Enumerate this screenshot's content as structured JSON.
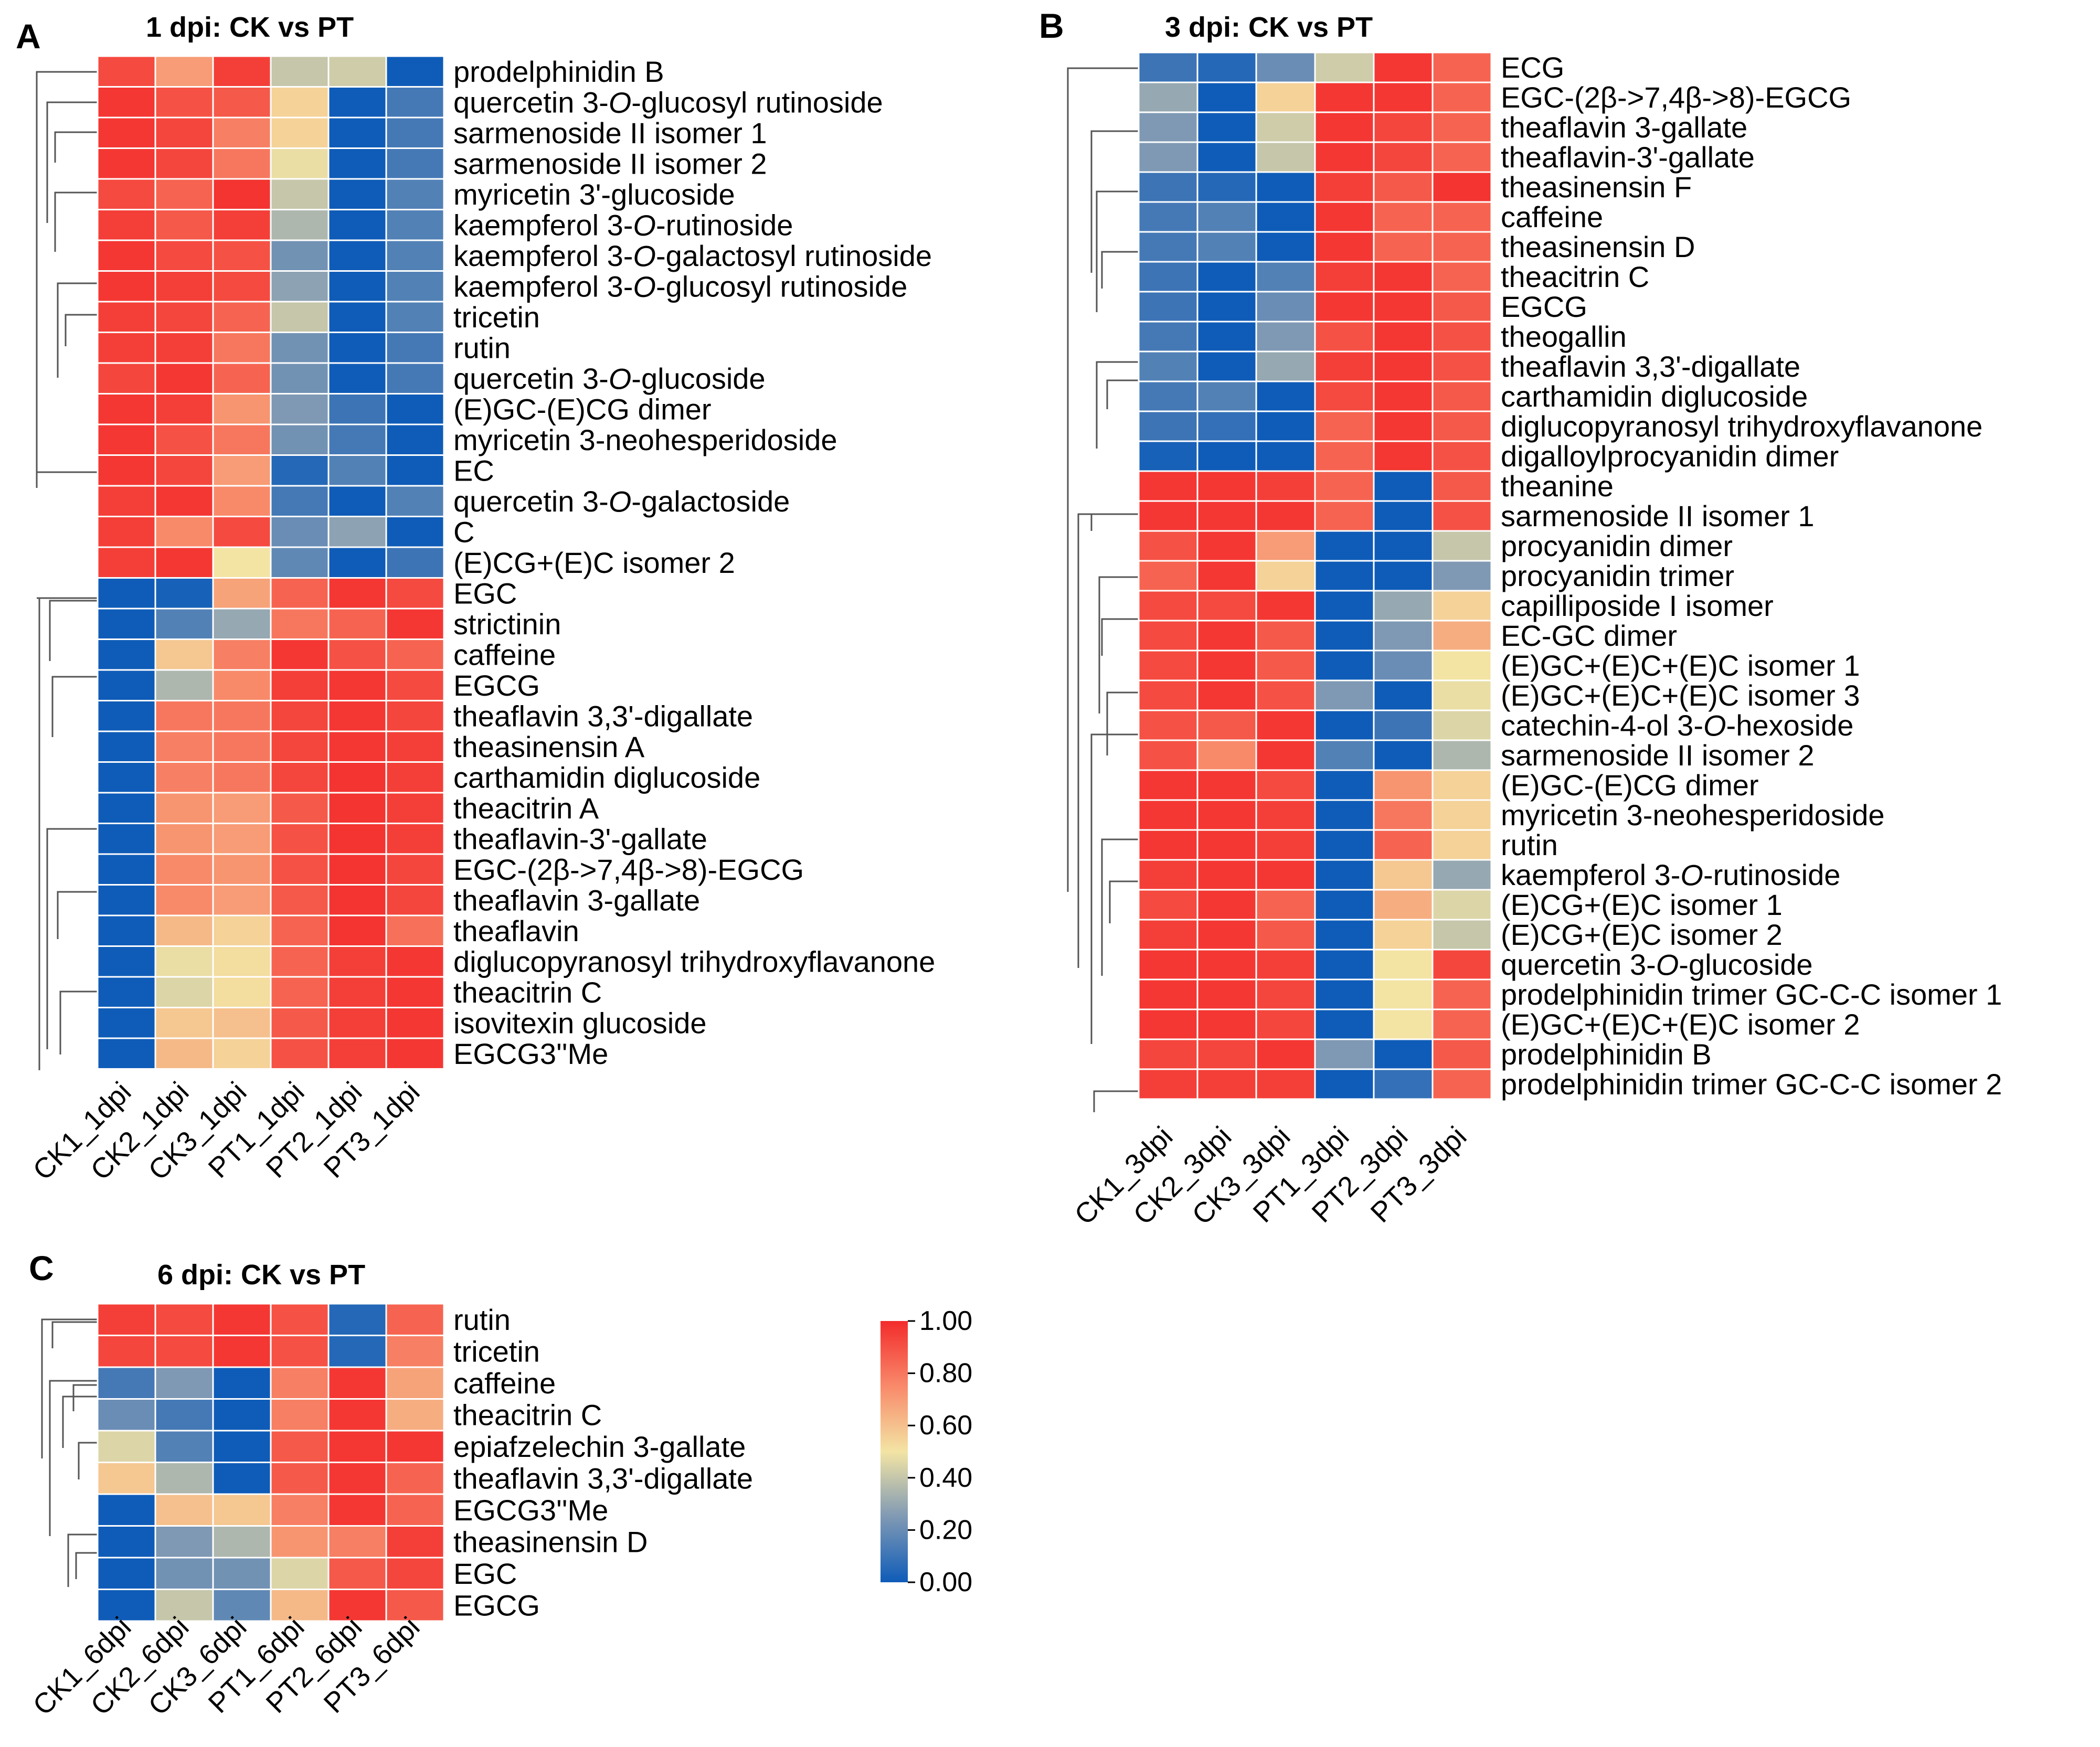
{
  "figure": {
    "colors": {
      "low": "#0f5cb8",
      "mid_low": "#7f99b4",
      "mid": "#f3e4a4",
      "mid_high": "#f88a6a",
      "high": "#f32c2c"
    }
  },
  "color_legend": {
    "ticks": [
      "1.00",
      "0.80",
      "0.60",
      "0.40",
      "0.20",
      "0.00"
    ]
  },
  "chart_data": [
    {
      "type": "heatmap",
      "panel": "A",
      "title": "1 dpi: CK vs PT",
      "columns": [
        "CK1_1dpi",
        "CK2_1dpi",
        "CK3_1dpi",
        "PT1_1dpi",
        "PT2_1dpi",
        "PT3_1dpi"
      ],
      "rows": [
        "prodelphinidin B",
        "quercetin 3-O-glucosyl rutinoside",
        "sarmenoside II isomer 1",
        "sarmenoside II isomer 2",
        "myricetin 3'-glucoside",
        "kaempferol 3-O-rutinoside",
        "kaempferol 3-O-galactosyl rutinoside",
        "kaempferol 3-O-glucosyl rutinoside",
        "tricetin",
        "rutin",
        "quercetin 3-O-glucoside",
        "(E)GC-(E)CG dimer",
        "myricetin 3-neohesperidoside",
        "EC",
        "quercetin 3-O-galactoside",
        "C",
        "(E)CG+(E)C isomer 2",
        "EGC",
        "strictinin",
        "caffeine",
        "EGCG",
        "theaflavin 3,3'-digallate",
        "theasinensin A",
        "carthamidin diglucoside",
        "theacitrin A",
        "theaflavin-3'-gallate",
        "EGC-(2β->7,4β->8)-EGCG",
        "theaflavin 3-gallate",
        "theaflavin",
        "diglucopyranosyl trihydroxyflavanone",
        "theacitrin C",
        "isovitexin glucoside",
        "EGCG3''Me"
      ],
      "values": [
        [
          0.92,
          0.7,
          0.95,
          0.4,
          0.42,
          0.0
        ],
        [
          0.97,
          0.9,
          0.88,
          0.55,
          0.0,
          0.12
        ],
        [
          0.97,
          0.93,
          0.78,
          0.55,
          0.0,
          0.12
        ],
        [
          0.97,
          0.93,
          0.8,
          0.48,
          0.0,
          0.12
        ],
        [
          0.92,
          0.85,
          0.98,
          0.4,
          0.0,
          0.15
        ],
        [
          0.95,
          0.88,
          0.95,
          0.35,
          0.0,
          0.15
        ],
        [
          0.97,
          0.92,
          0.9,
          0.22,
          0.0,
          0.15
        ],
        [
          0.97,
          0.95,
          0.92,
          0.28,
          0.0,
          0.15
        ],
        [
          0.95,
          0.93,
          0.85,
          0.4,
          0.0,
          0.15
        ],
        [
          0.95,
          0.95,
          0.8,
          0.22,
          0.0,
          0.12
        ],
        [
          0.93,
          0.97,
          0.85,
          0.22,
          0.0,
          0.12
        ],
        [
          0.97,
          0.95,
          0.72,
          0.25,
          0.1,
          0.0
        ],
        [
          0.97,
          0.9,
          0.8,
          0.22,
          0.12,
          0.0
        ],
        [
          0.97,
          0.93,
          0.7,
          0.05,
          0.15,
          0.0
        ],
        [
          0.95,
          0.97,
          0.75,
          0.12,
          0.0,
          0.15
        ],
        [
          0.95,
          0.75,
          0.92,
          0.2,
          0.28,
          0.0
        ],
        [
          0.95,
          0.97,
          0.5,
          0.18,
          0.0,
          0.1
        ],
        [
          0.0,
          0.02,
          0.68,
          0.85,
          0.97,
          0.92
        ],
        [
          0.0,
          0.15,
          0.3,
          0.8,
          0.85,
          0.97
        ],
        [
          0.0,
          0.58,
          0.78,
          0.97,
          0.9,
          0.85
        ],
        [
          0.0,
          0.35,
          0.75,
          0.95,
          0.97,
          0.92
        ],
        [
          0.0,
          0.8,
          0.8,
          0.93,
          0.97,
          0.93
        ],
        [
          0.0,
          0.78,
          0.8,
          0.93,
          0.97,
          0.95
        ],
        [
          0.0,
          0.78,
          0.8,
          0.93,
          0.98,
          0.95
        ],
        [
          0.0,
          0.72,
          0.7,
          0.88,
          0.98,
          0.95
        ],
        [
          0.0,
          0.72,
          0.7,
          0.9,
          0.98,
          0.95
        ],
        [
          0.0,
          0.75,
          0.72,
          0.9,
          0.98,
          0.93
        ],
        [
          0.0,
          0.75,
          0.7,
          0.88,
          0.98,
          0.93
        ],
        [
          0.0,
          0.62,
          0.55,
          0.85,
          0.98,
          0.82
        ],
        [
          0.0,
          0.48,
          0.52,
          0.85,
          0.95,
          0.97
        ],
        [
          0.0,
          0.45,
          0.52,
          0.85,
          0.95,
          0.97
        ],
        [
          0.0,
          0.58,
          0.6,
          0.88,
          0.95,
          0.97
        ],
        [
          0.0,
          0.62,
          0.55,
          0.9,
          0.95,
          0.97
        ]
      ]
    },
    {
      "type": "heatmap",
      "panel": "B",
      "title": "3 dpi: CK vs PT",
      "columns": [
        "CK1_3dpi",
        "CK2_3dpi",
        "CK3_3dpi",
        "PT1_3dpi",
        "PT2_3dpi",
        "PT3_3dpi"
      ],
      "rows": [
        "ECG",
        "EGC-(2β->7,4β->8)-EGCG",
        "theaflavin 3-gallate",
        "theaflavin-3'-gallate",
        "theasinensin F",
        "caffeine",
        "theasinensin D",
        "theacitrin C",
        "EGCG",
        "theogallin",
        "theaflavin 3,3'-digallate",
        "carthamidin diglucoside",
        "diglucopyranosyl trihydroxyflavanone",
        "digalloylprocyanidin dimer",
        "theanine",
        "sarmenoside II isomer 1",
        "procyanidin dimer",
        "procyanidin trimer",
        "capilliposide I isomer",
        "EC-GC dimer",
        "(E)GC+(E)C+(E)C isomer 1",
        "(E)GC+(E)C+(E)C isomer 3",
        "catechin-4-ol 3-O-hexoside",
        "sarmenoside II isomer 2",
        "(E)GC-(E)CG dimer",
        "myricetin 3-neohesperidoside",
        "rutin",
        "kaempferol 3-O-rutinoside",
        "(E)CG+(E)C isomer 1",
        "(E)CG+(E)C isomer 2",
        "quercetin 3-O-glucoside",
        "prodelphinidin trimer GC-C-C isomer 1",
        "(E)GC+(E)C+(E)C isomer 2",
        "prodelphinidin B",
        "prodelphinidin trimer GC-C-C isomer 2"
      ],
      "values": [
        [
          0.1,
          0.05,
          0.2,
          0.42,
          0.97,
          0.85
        ],
        [
          0.3,
          0.0,
          0.55,
          0.97,
          0.97,
          0.85
        ],
        [
          0.25,
          0.0,
          0.42,
          0.97,
          0.93,
          0.85
        ],
        [
          0.25,
          0.0,
          0.4,
          0.97,
          0.93,
          0.85
        ],
        [
          0.1,
          0.05,
          0.0,
          0.95,
          0.88,
          0.98
        ],
        [
          0.12,
          0.15,
          0.0,
          0.97,
          0.85,
          0.85
        ],
        [
          0.12,
          0.15,
          0.0,
          0.97,
          0.85,
          0.85
        ],
        [
          0.1,
          0.0,
          0.15,
          0.95,
          0.97,
          0.85
        ],
        [
          0.1,
          0.0,
          0.2,
          0.97,
          0.97,
          0.88
        ],
        [
          0.12,
          0.0,
          0.25,
          0.9,
          0.97,
          0.9
        ],
        [
          0.15,
          0.0,
          0.3,
          0.95,
          0.97,
          0.9
        ],
        [
          0.12,
          0.15,
          0.0,
          0.92,
          0.97,
          0.88
        ],
        [
          0.1,
          0.08,
          0.0,
          0.85,
          0.97,
          0.88
        ],
        [
          0.02,
          0.0,
          0.0,
          0.85,
          0.97,
          0.9
        ],
        [
          0.97,
          0.97,
          0.95,
          0.85,
          0.0,
          0.88
        ],
        [
          0.97,
          0.97,
          0.97,
          0.85,
          0.0,
          0.9
        ],
        [
          0.9,
          0.97,
          0.7,
          0.0,
          0.0,
          0.4
        ],
        [
          0.85,
          0.97,
          0.55,
          0.0,
          0.0,
          0.25
        ],
        [
          0.92,
          0.92,
          0.97,
          0.0,
          0.3,
          0.55
        ],
        [
          0.92,
          0.97,
          0.88,
          0.0,
          0.25,
          0.65
        ],
        [
          0.92,
          0.97,
          0.88,
          0.0,
          0.2,
          0.5
        ],
        [
          0.92,
          0.97,
          0.9,
          0.25,
          0.0,
          0.48
        ],
        [
          0.9,
          0.88,
          0.97,
          0.0,
          0.1,
          0.45
        ],
        [
          0.9,
          0.75,
          0.97,
          0.15,
          0.0,
          0.35
        ],
        [
          0.97,
          0.97,
          0.92,
          0.0,
          0.72,
          0.55
        ],
        [
          0.97,
          0.97,
          0.95,
          0.0,
          0.8,
          0.55
        ],
        [
          0.97,
          0.97,
          0.95,
          0.0,
          0.85,
          0.55
        ],
        [
          0.95,
          0.97,
          0.97,
          0.0,
          0.58,
          0.3
        ],
        [
          0.92,
          0.97,
          0.85,
          0.0,
          0.65,
          0.45
        ],
        [
          0.95,
          0.97,
          0.88,
          0.0,
          0.55,
          0.4
        ],
        [
          0.97,
          0.97,
          0.95,
          0.0,
          0.5,
          0.93
        ],
        [
          0.97,
          0.97,
          0.93,
          0.0,
          0.5,
          0.85
        ],
        [
          0.97,
          0.97,
          0.93,
          0.0,
          0.5,
          0.85
        ],
        [
          0.93,
          0.93,
          0.97,
          0.25,
          0.0,
          0.88
        ],
        [
          0.95,
          0.95,
          0.95,
          0.0,
          0.08,
          0.85
        ]
      ]
    },
    {
      "type": "heatmap",
      "panel": "C",
      "title": "6 dpi: CK vs PT",
      "columns": [
        "CK1_6dpi",
        "CK2_6dpi",
        "CK3_6dpi",
        "PT1_6dpi",
        "PT2_6dpi",
        "PT3_6dpi"
      ],
      "rows": [
        "rutin",
        "tricetin",
        "caffeine",
        "theacitrin C",
        "epiafzelechin 3-gallate",
        "theaflavin 3,3'-digallate",
        "EGCG3''Me",
        "theasinensin D",
        "EGC",
        "EGCG"
      ],
      "values": [
        [
          0.95,
          0.92,
          0.97,
          0.9,
          0.05,
          0.85
        ],
        [
          0.93,
          0.92,
          0.97,
          0.9,
          0.05,
          0.78
        ],
        [
          0.12,
          0.25,
          0.0,
          0.78,
          0.97,
          0.68
        ],
        [
          0.2,
          0.12,
          0.0,
          0.78,
          0.97,
          0.65
        ],
        [
          0.45,
          0.15,
          0.0,
          0.88,
          0.97,
          0.97
        ],
        [
          0.58,
          0.35,
          0.0,
          0.88,
          0.97,
          0.85
        ],
        [
          0.0,
          0.6,
          0.58,
          0.78,
          0.97,
          0.85
        ],
        [
          0.0,
          0.25,
          0.35,
          0.72,
          0.78,
          0.95
        ],
        [
          0.0,
          0.22,
          0.22,
          0.45,
          0.88,
          0.93
        ],
        [
          0.0,
          0.4,
          0.18,
          0.62,
          0.97,
          0.88
        ]
      ]
    }
  ]
}
